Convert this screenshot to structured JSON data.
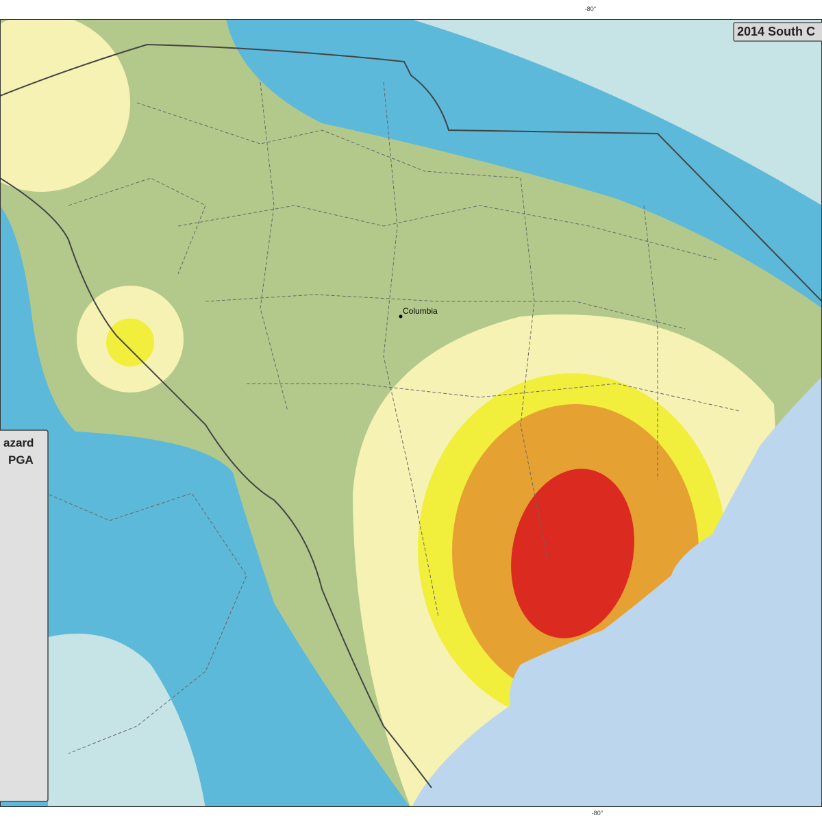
{
  "map": {
    "title": "2014 South C",
    "graticule_labels": [
      "-80°",
      "-80°"
    ],
    "places": [
      {
        "label": "Columbia"
      }
    ],
    "legend": {
      "lines": [
        "azard",
        "PGA"
      ]
    }
  }
}
